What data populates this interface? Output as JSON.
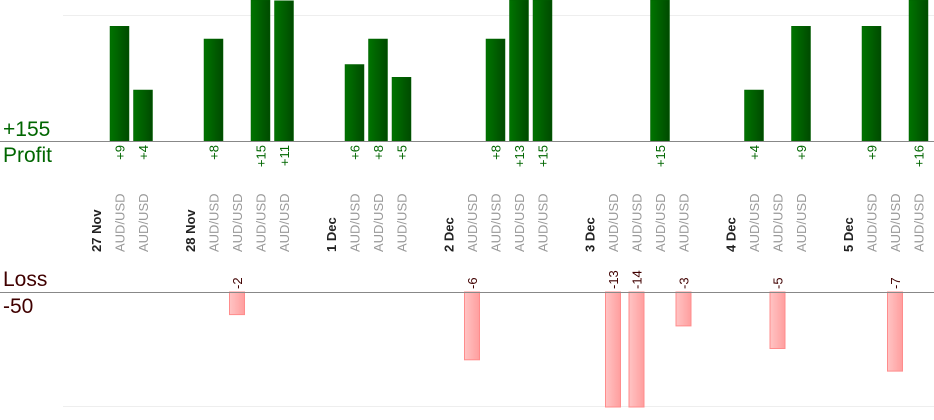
{
  "chart_data": {
    "type": "bar",
    "profit": {
      "total_label": "+155",
      "title": "Profit",
      "color": "#006600"
    },
    "loss": {
      "total_label": "-50",
      "title": "Loss",
      "color": "#400000"
    },
    "columns": [
      {
        "type": "date",
        "label": "27 Nov"
      },
      {
        "type": "trade",
        "label": "AUD/USD",
        "value": 9
      },
      {
        "type": "trade",
        "label": "AUD/USD",
        "value": 4
      },
      {
        "type": "gap"
      },
      {
        "type": "date",
        "label": "28 Nov"
      },
      {
        "type": "trade",
        "label": "AUD/USD",
        "value": 8
      },
      {
        "type": "trade",
        "label": "AUD/USD",
        "value": -2
      },
      {
        "type": "trade",
        "label": "AUD/USD",
        "value": 15
      },
      {
        "type": "trade",
        "label": "AUD/USD",
        "value": 11
      },
      {
        "type": "gap"
      },
      {
        "type": "date",
        "label": "1 Dec"
      },
      {
        "type": "trade",
        "label": "AUD/USD",
        "value": 6
      },
      {
        "type": "trade",
        "label": "AUD/USD",
        "value": 8
      },
      {
        "type": "trade",
        "label": "AUD/USD",
        "value": 5
      },
      {
        "type": "gap"
      },
      {
        "type": "date",
        "label": "2 Dec"
      },
      {
        "type": "trade",
        "label": "AUD/USD",
        "value": -6
      },
      {
        "type": "trade",
        "label": "AUD/USD",
        "value": 8
      },
      {
        "type": "trade",
        "label": "AUD/USD",
        "value": 13
      },
      {
        "type": "trade",
        "label": "AUD/USD",
        "value": 15
      },
      {
        "type": "gap"
      },
      {
        "type": "date",
        "label": "3 Dec"
      },
      {
        "type": "trade",
        "label": "AUD/USD",
        "value": -13
      },
      {
        "type": "trade",
        "label": "AUD/USD",
        "value": -14
      },
      {
        "type": "trade",
        "label": "AUD/USD",
        "value": 15
      },
      {
        "type": "trade",
        "label": "AUD/USD",
        "value": -3
      },
      {
        "type": "gap"
      },
      {
        "type": "date",
        "label": "4 Dec"
      },
      {
        "type": "trade",
        "label": "AUD/USD",
        "value": 4
      },
      {
        "type": "trade",
        "label": "AUD/USD",
        "value": -5
      },
      {
        "type": "trade",
        "label": "AUD/USD",
        "value": 9
      },
      {
        "type": "gap"
      },
      {
        "type": "date",
        "label": "5 Dec"
      },
      {
        "type": "trade",
        "label": "AUD/USD",
        "value": 9
      },
      {
        "type": "trade",
        "label": "AUD/USD",
        "value": -7
      },
      {
        "type": "trade",
        "label": "AUD/USD",
        "value": 16
      }
    ]
  }
}
